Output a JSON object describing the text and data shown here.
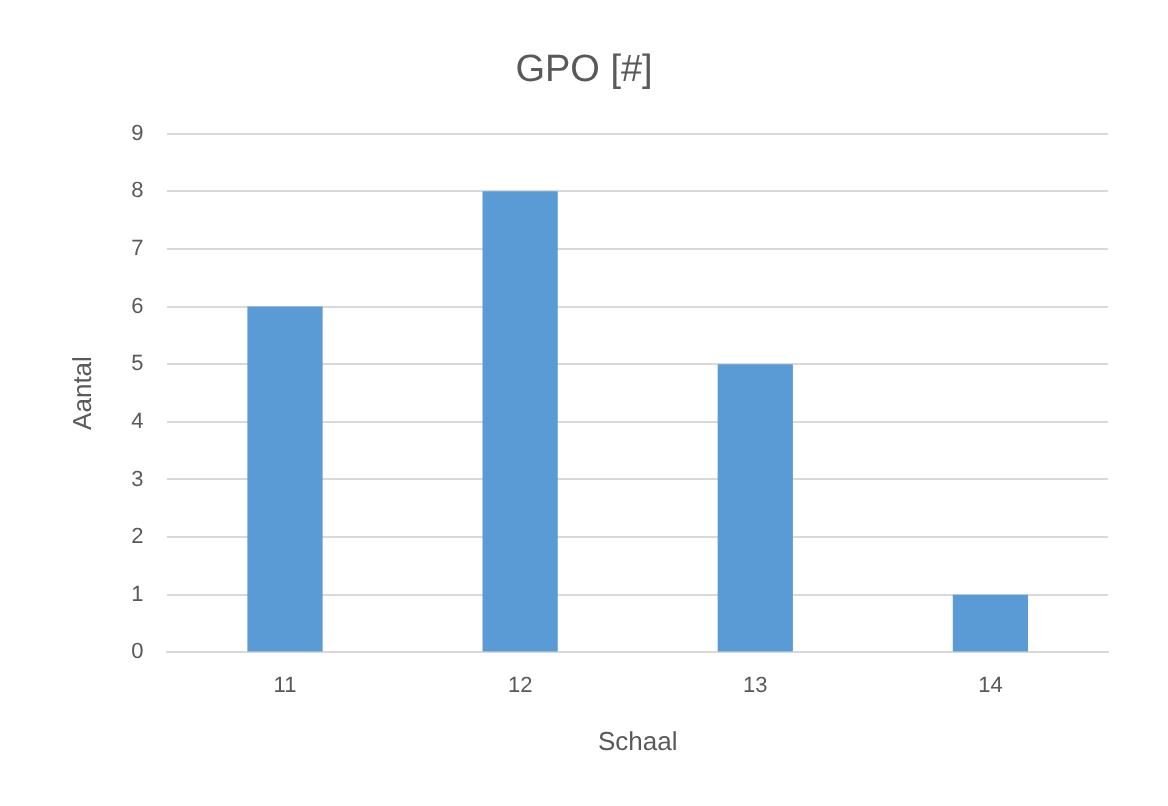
{
  "chart_data": {
    "type": "bar",
    "title": "GPO [#]",
    "xlabel": "Schaal",
    "ylabel": "Aantal",
    "categories": [
      "11",
      "12",
      "13",
      "14"
    ],
    "values": [
      6,
      8,
      5,
      1
    ],
    "color": "#5b9bd5",
    "ylim": [
      0,
      9
    ],
    "yticks": [
      0,
      1,
      2,
      3,
      4,
      5,
      6,
      7,
      8,
      9
    ],
    "grid": "y",
    "legend": false
  }
}
